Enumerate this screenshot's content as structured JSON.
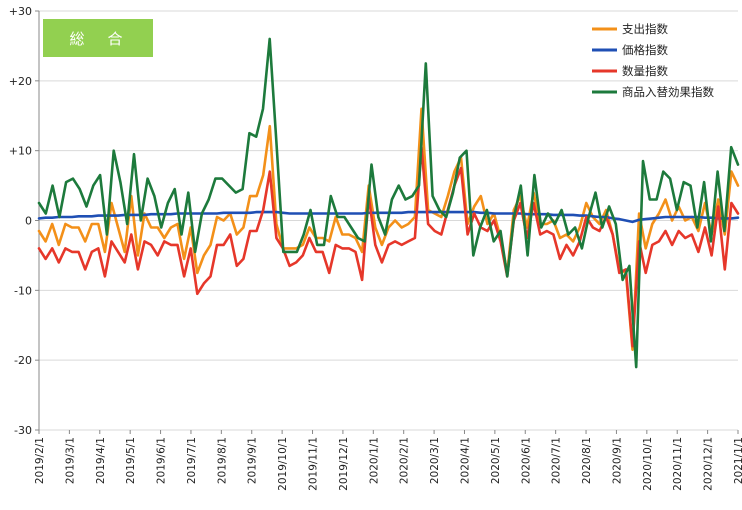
{
  "chart_data": {
    "type": "line",
    "title": "",
    "badge_label": "総　合",
    "badge_color": "#92d050",
    "xlabel": "",
    "ylabel": "",
    "ylim": [
      -30,
      30
    ],
    "yticks": [
      30,
      20,
      10,
      0,
      -10,
      -20,
      -30
    ],
    "ytick_labels": [
      "+30",
      "+20",
      "+10",
      "0",
      "-10",
      "-20",
      "-30"
    ],
    "grid": "horizontal",
    "legend_position": "top-right",
    "x_start": "2019/2/1",
    "x_end": "2021/1/1",
    "xtick_labels": [
      "2019/2/1",
      "2019/3/1",
      "2019/4/1",
      "2019/5/1",
      "2019/6/1",
      "2019/7/1",
      "2019/8/1",
      "2019/9/1",
      "2019/10/1",
      "2019/11/1",
      "2019/12/1",
      "2020/1/1",
      "2020/2/1",
      "2020/3/1",
      "2020/4/1",
      "2020/5/1",
      "2020/6/1",
      "2020/7/1",
      "2020/8/1",
      "2020/9/1",
      "2020/10/1",
      "2020/11/1",
      "2020/12/1",
      "2021/1/1"
    ],
    "series": [
      {
        "name": "支出指数",
        "color": "#f39019",
        "values": [
          -1.5,
          -3.0,
          -0.5,
          -3.5,
          -0.5,
          -1.0,
          -1.0,
          -3.0,
          -0.5,
          -0.5,
          -4.5,
          2.5,
          -1.0,
          -4.5,
          3.5,
          -5.0,
          1.0,
          -1.0,
          -1.0,
          -2.5,
          -1.0,
          -0.5,
          -5.5,
          -1.0,
          -7.5,
          -5.0,
          -3.5,
          0.5,
          0.0,
          1.0,
          -2.0,
          -1.0,
          3.5,
          3.5,
          6.5,
          13.5,
          -0.5,
          -4.0,
          -4.0,
          -4.0,
          -3.5,
          -1.0,
          -2.5,
          -2.5,
          -3.0,
          0.5,
          -2.0,
          -2.0,
          -2.5,
          -4.5,
          5.0,
          -1.0,
          -3.5,
          -1.0,
          0.0,
          -1.0,
          -0.5,
          0.5,
          16.0,
          1.5,
          1.0,
          0.5,
          3.5,
          7.0,
          9.0,
          -0.5,
          2.0,
          3.5,
          -0.5,
          1.0,
          -2.5,
          -7.5,
          1.5,
          3.5,
          -1.0,
          4.0,
          -0.5,
          -0.5,
          0.0,
          -2.5,
          -2.0,
          -3.0,
          -1.0,
          2.5,
          0.5,
          -0.5,
          1.5,
          -2.0,
          -7.0,
          -7.5,
          -18.5,
          1.0,
          -4.0,
          -0.5,
          1.0,
          3.0,
          0.0,
          2.0,
          0.0,
          0.5,
          -1.5,
          2.5,
          -2.0,
          3.0,
          -2.0,
          7.0,
          5.0
        ]
      },
      {
        "name": "価格指数",
        "color": "#1f4fb4",
        "values": [
          0.3,
          0.4,
          0.4,
          0.5,
          0.5,
          0.5,
          0.6,
          0.6,
          0.6,
          0.7,
          0.7,
          0.7,
          0.7,
          0.8,
          0.8,
          0.8,
          0.8,
          0.9,
          0.9,
          0.9,
          0.9,
          1.0,
          1.0,
          1.0,
          1.0,
          1.0,
          1.0,
          1.0,
          1.1,
          1.1,
          1.1,
          1.1,
          1.1,
          1.2,
          1.2,
          1.2,
          1.2,
          1.1,
          1.0,
          1.0,
          1.0,
          1.0,
          1.0,
          1.0,
          1.0,
          1.0,
          1.0,
          1.0,
          1.0,
          1.0,
          1.1,
          1.1,
          1.1,
          1.1,
          1.1,
          1.1,
          1.2,
          1.2,
          1.2,
          1.2,
          1.2,
          1.2,
          1.2,
          1.2,
          1.2,
          1.2,
          1.2,
          1.1,
          1.1,
          1.0,
          1.0,
          1.0,
          1.0,
          1.0,
          0.9,
          0.9,
          0.9,
          0.9,
          0.8,
          0.8,
          0.8,
          0.8,
          0.7,
          0.7,
          0.6,
          0.5,
          0.5,
          0.3,
          0.2,
          0.0,
          -0.2,
          0.1,
          0.2,
          0.3,
          0.4,
          0.5,
          0.5,
          0.5,
          0.5,
          0.5,
          0.5,
          0.4,
          0.4,
          0.3,
          0.3,
          0.3,
          0.4
        ]
      },
      {
        "name": "数量指数",
        "color": "#e6372a",
        "values": [
          -4.0,
          -5.5,
          -4.0,
          -6.0,
          -4.0,
          -4.5,
          -4.5,
          -7.0,
          -4.5,
          -4.0,
          -8.0,
          -3.0,
          -4.5,
          -6.0,
          -2.0,
          -7.0,
          -3.0,
          -3.5,
          -5.0,
          -3.0,
          -3.5,
          -3.5,
          -8.0,
          -4.0,
          -10.5,
          -9.0,
          -8.0,
          -3.5,
          -3.5,
          -2.0,
          -6.5,
          -5.5,
          -1.5,
          -1.5,
          1.5,
          7.0,
          -2.5,
          -4.0,
          -6.5,
          -6.0,
          -5.0,
          -2.5,
          -4.5,
          -4.5,
          -7.5,
          -3.5,
          -4.0,
          -4.0,
          -4.5,
          -8.5,
          3.5,
          -3.5,
          -6.0,
          -3.5,
          -3.0,
          -3.5,
          -3.0,
          -2.5,
          10.5,
          -0.5,
          -1.5,
          -2.0,
          1.5,
          5.0,
          7.5,
          -2.0,
          1.0,
          -1.0,
          -1.5,
          0.0,
          -3.0,
          -8.0,
          0.0,
          2.5,
          -2.5,
          2.5,
          -2.0,
          -1.5,
          -2.0,
          -5.5,
          -3.5,
          -5.0,
          -3.0,
          0.5,
          -1.0,
          -1.5,
          0.5,
          -2.0,
          -7.5,
          -7.0,
          -18.0,
          -3.0,
          -7.5,
          -3.5,
          -3.0,
          -1.5,
          -3.5,
          -1.5,
          -2.5,
          -2.0,
          -4.5,
          -1.0,
          -5.0,
          2.0,
          -7.0,
          2.5,
          1.0
        ]
      },
      {
        "name": "商品入替効果指数",
        "color": "#1d7a3c",
        "values": [
          2.5,
          1.0,
          5.0,
          0.5,
          5.5,
          6.0,
          4.5,
          2.0,
          5.0,
          6.5,
          -2.0,
          10.0,
          5.5,
          -0.5,
          9.5,
          0.0,
          6.0,
          3.5,
          -1.0,
          2.5,
          4.5,
          -2.0,
          4.0,
          -4.5,
          1.0,
          3.0,
          6.0,
          6.0,
          5.0,
          4.0,
          4.5,
          12.5,
          12.0,
          16.0,
          26.0,
          11.0,
          -4.5,
          -4.5,
          -4.5,
          -2.0,
          1.5,
          -3.5,
          -3.5,
          3.5,
          0.5,
          0.5,
          -1.0,
          -2.5,
          -3.0,
          8.0,
          0.5,
          -2.0,
          3.0,
          5.0,
          3.0,
          3.5,
          5.0,
          22.5,
          3.5,
          1.5,
          0.5,
          4.0,
          9.0,
          10.0,
          -5.0,
          -1.0,
          1.5,
          -3.0,
          -1.5,
          -8.0,
          0.5,
          5.0,
          -5.0,
          6.5,
          -1.0,
          1.0,
          -0.5,
          1.5,
          -2.0,
          -1.0,
          -4.0,
          0.5,
          4.0,
          -1.0,
          2.0,
          -0.5,
          -8.5,
          -6.5,
          -21.0,
          8.5,
          3.0,
          3.0,
          7.0,
          6.0,
          1.5,
          5.5,
          5.0,
          -1.0,
          5.5,
          -3.0,
          7.0,
          -1.5,
          10.5,
          8.0
        ]
      }
    ]
  }
}
